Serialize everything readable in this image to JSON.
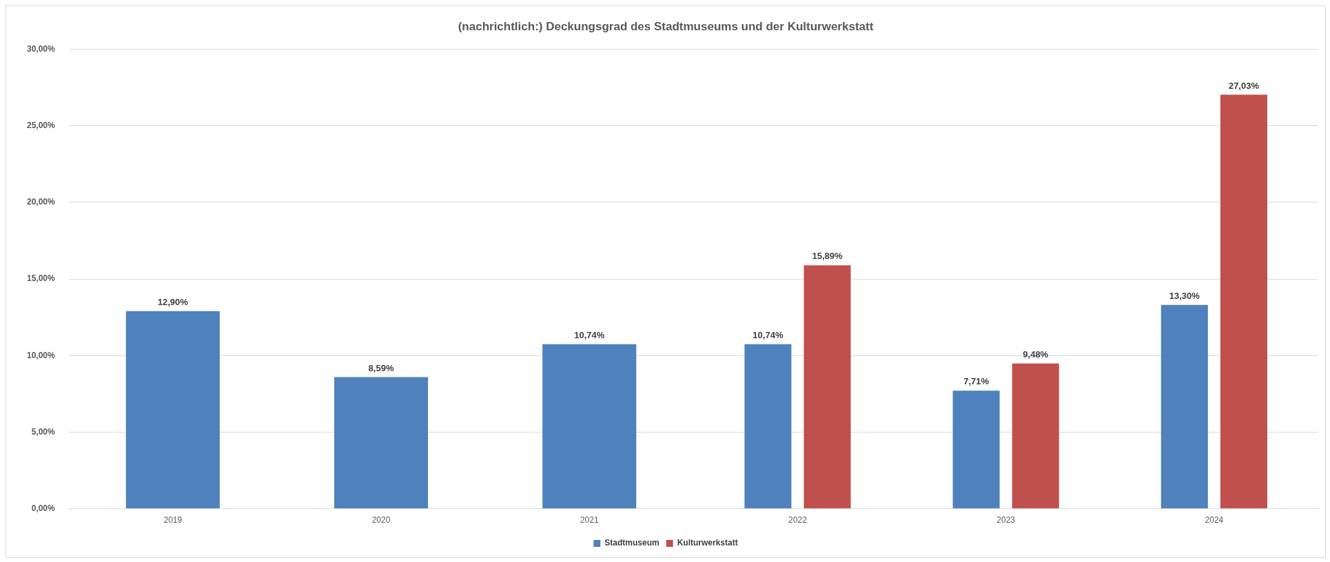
{
  "chart_data": {
    "type": "bar",
    "title": "(nachrichtlich:) Deckungsgrad des Stadtmuseums und der Kulturwerkstatt",
    "categories": [
      "2019",
      "2020",
      "2021",
      "2022",
      "2023",
      "2024"
    ],
    "series": [
      {
        "name": "Stadtmuseum",
        "color": "#4f81bd",
        "values": [
          12.9,
          8.59,
          10.74,
          10.74,
          7.71,
          13.3
        ],
        "value_labels": [
          "12,90%",
          "8,59%",
          "10,74%",
          "10,74%",
          "7,71%",
          "13,30%"
        ]
      },
      {
        "name": "Kulturwerkstatt",
        "color": "#c0504d",
        "values": [
          null,
          null,
          null,
          15.89,
          9.48,
          27.03
        ],
        "value_labels": [
          null,
          null,
          null,
          "15,89%",
          "9,48%",
          "27,03%"
        ]
      }
    ],
    "ylim": [
      0,
      30
    ],
    "yticks": [
      {
        "value": 0,
        "label": "0,00%"
      },
      {
        "value": 5,
        "label": "5,00%"
      },
      {
        "value": 10,
        "label": "10,00%"
      },
      {
        "value": 15,
        "label": "15,00%"
      },
      {
        "value": 20,
        "label": "20,00%"
      },
      {
        "value": 25,
        "label": "25,00%"
      },
      {
        "value": 30,
        "label": "30,00%"
      }
    ],
    "grid": "y",
    "legend": "bottom"
  }
}
